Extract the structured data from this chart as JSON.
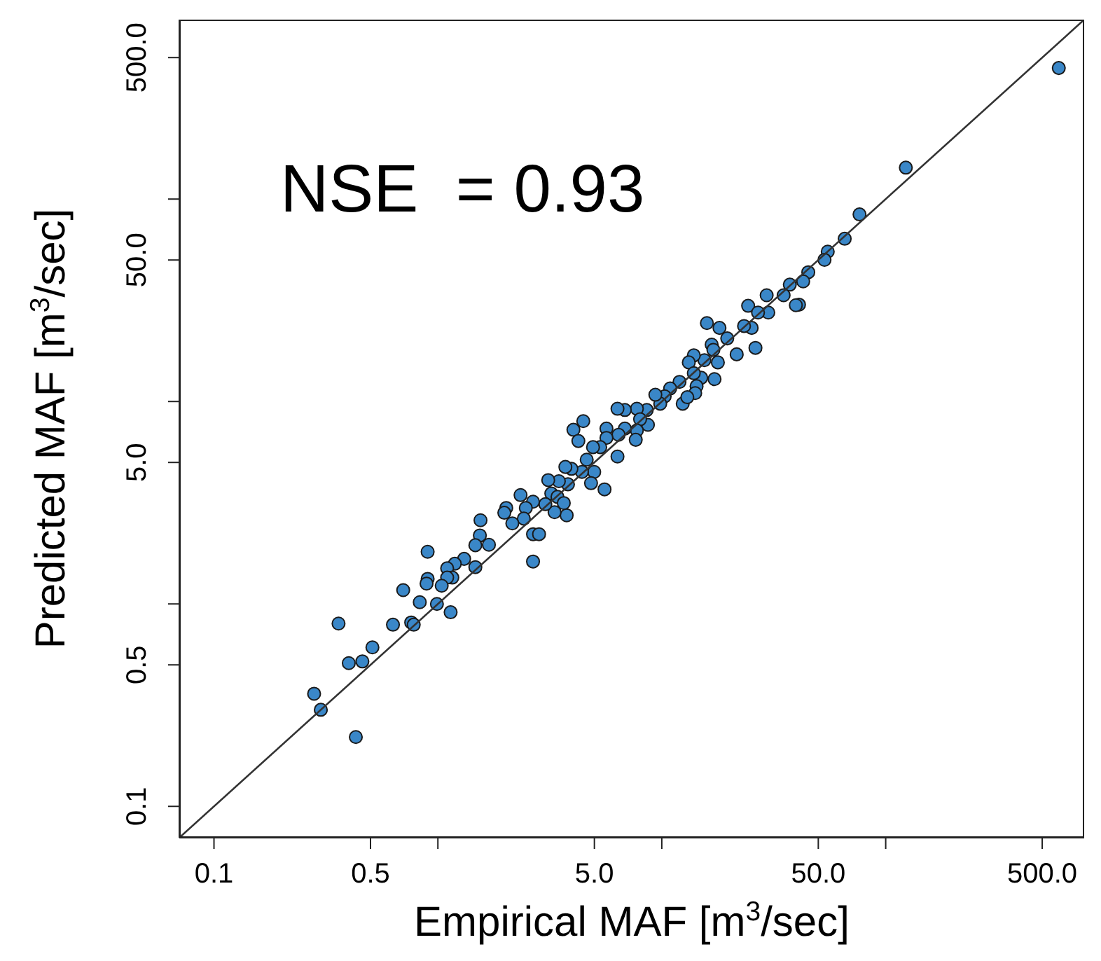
{
  "chart_data": {
    "type": "scatter",
    "xlabel": "Empirical MAF [m$^{3}$/sec]",
    "ylabel": "Predicted MAF [m$^{3}$/sec]",
    "annotations": [
      "NSE  = 0.93"
    ],
    "log": "xy",
    "xlim": [
      0.07,
      770
    ],
    "ylim": [
      0.07,
      770
    ],
    "xticks": [
      0.1,
      0.5,
      {
        "value": 1,
        "label": null
      },
      {
        "value": 5,
        "label": "5.0"
      },
      {
        "value": 10,
        "label": null
      },
      {
        "value": 50,
        "label": "50.0"
      },
      {
        "value": 100,
        "label": null
      },
      {
        "value": 500,
        "label": "500.0"
      }
    ],
    "yticks": [
      0.1,
      0.5,
      {
        "value": 1,
        "label": null
      },
      {
        "value": 5,
        "label": "5.0"
      },
      {
        "value": 10,
        "label": null
      },
      {
        "value": 50,
        "label": "50.0"
      },
      {
        "value": 100,
        "label": null
      },
      {
        "value": 500,
        "label": "500.0"
      }
    ],
    "series": [
      {
        "marker": "circle",
        "color": "#3a87c8",
        "x": [
          593,
          123,
          76.4,
          65.6,
          55.1,
          53.3,
          45.1,
          42.8,
          41.0,
          39.7,
          37.3,
          35.0,
          29.4,
          29.9,
          24.3,
          26.9,
          25.2,
          23.3,
          26.2,
          21.6,
          15.9,
          18.1,
          19.6,
          16.7,
          17.0,
          17.8,
          15.5,
          13.9,
          13.2,
          17.2,
          15.0,
          13.9,
          14.3,
          14.1,
          12.4,
          13.0,
          12.0,
          10.9,
          10.3,
          9.84,
          9.36,
          8.57,
          8.67,
          7.74,
          8.0,
          7.74,
          7.65,
          6.84,
          6.34,
          6.84,
          6.41,
          5.66,
          5.66,
          6.34,
          5.31,
          4.93,
          4.46,
          4.03,
          4.24,
          4.62,
          4.99,
          4.83,
          5.55,
          4.4,
          3.95,
          3.71,
          3.81,
          3.47,
          3.11,
          3.21,
          3.42,
          3.65,
          3.76,
          3.32,
          3.02,
          2.66,
          2.34,
          2.47,
          2.42,
          2.02,
          1.98,
          2.15,
          2.66,
          2.83,
          2.66,
          1.55,
          1.54,
          1.47,
          1.69,
          1.47,
          1.31,
          1.19,
          1.1,
          1.16,
          1.1,
          1.04,
          0.9,
          0.9,
          0.89,
          0.7,
          0.83,
          0.99,
          1.14,
          0.63,
          0.76,
          0.78,
          0.36,
          0.4,
          0.46,
          0.51,
          0.28,
          0.3,
          0.43
        ],
        "values": [
          444,
          143,
          84,
          63.7,
          55.0,
          50.1,
          43.5,
          39.2,
          30.1,
          29.9,
          37.8,
          33.5,
          33.5,
          27.5,
          29.7,
          27.5,
          23.1,
          23.6,
          18.4,
          17.1,
          24.4,
          23.1,
          20.5,
          19.1,
          18.0,
          15.6,
          16.0,
          16.9,
          15.6,
          12.9,
          13.1,
          13.8,
          11.9,
          11.0,
          9.75,
          10.5,
          12.5,
          11.6,
          10.6,
          9.75,
          10.8,
          9.08,
          7.67,
          9.21,
          8.17,
          7.19,
          6.47,
          9.08,
          9.21,
          7.35,
          6.85,
          7.35,
          6.61,
          5.35,
          5.95,
          5.95,
          8.0,
          7.25,
          6.38,
          5.16,
          4.49,
          3.95,
          3.68,
          4.49,
          4.65,
          4.75,
          3.9,
          4.04,
          4.09,
          3.51,
          3.38,
          3.15,
          2.74,
          2.84,
          3.11,
          3.2,
          3.45,
          2.98,
          2.64,
          2.98,
          2.82,
          2.5,
          2.21,
          2.21,
          1.62,
          2.59,
          2.18,
          1.95,
          1.96,
          1.52,
          1.67,
          1.58,
          1.5,
          1.35,
          1.35,
          1.23,
          1.81,
          1.33,
          1.26,
          1.17,
          1.02,
          1.0,
          0.91,
          0.79,
          0.81,
          0.79,
          0.8,
          0.51,
          0.52,
          0.61,
          0.36,
          0.3,
          0.22
        ]
      },
      {
        "type": "line",
        "marker": "none",
        "color": "#333333",
        "x": [
          0.07,
          770
        ],
        "values": [
          0.07,
          770
        ]
      }
    ]
  }
}
